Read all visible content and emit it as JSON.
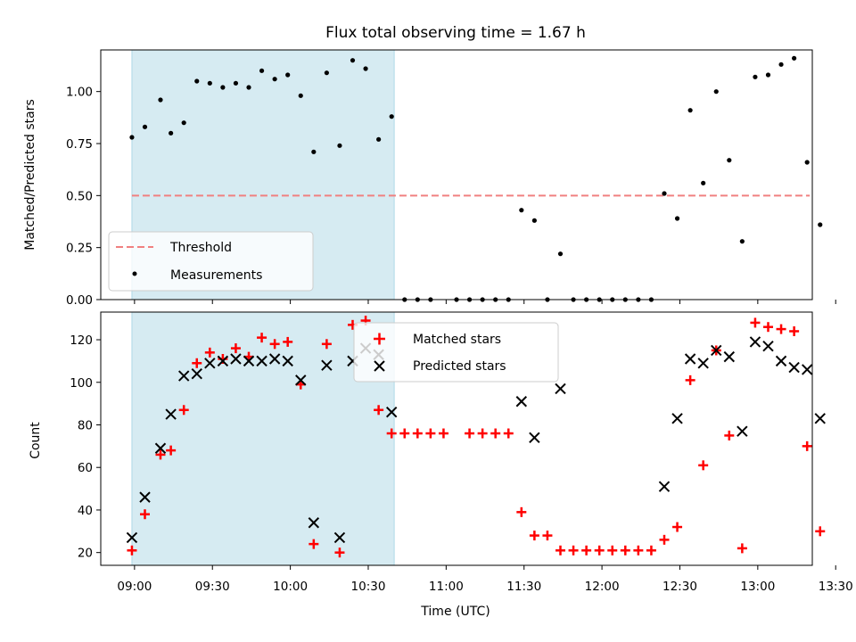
{
  "title": "Flux total observing time = 1.67 h",
  "colors": {
    "shade": "#add8e6",
    "threshold": "#f08080",
    "measurement": "#000000",
    "matched": "#ff0000",
    "predicted": "#000000"
  },
  "chart_data": [
    {
      "type": "scatter",
      "name": "top",
      "ylabel": "Matched/Predicted stars",
      "ylim": [
        0,
        1.2
      ],
      "yticks": [
        0,
        0.25,
        0.5,
        0.75,
        1.0
      ],
      "ytick_labels": [
        "0.00",
        "0.25",
        "0.50",
        "0.75",
        "1.00"
      ],
      "xlim_minutes": [
        -13,
        261
      ],
      "shaded_span_minutes": [
        -1,
        100
      ],
      "legend": {
        "placement": "lower-left",
        "entries": [
          "Threshold",
          "Measurements"
        ]
      },
      "threshold": {
        "name": "Threshold",
        "y": 0.5,
        "x_minutes": [
          -1,
          260
        ]
      },
      "series": [
        {
          "name": "Measurements",
          "points_minutes": [
            [
              -1,
              0.78
            ],
            [
              4,
              0.83
            ],
            [
              10,
              0.96
            ],
            [
              14,
              0.8
            ],
            [
              19,
              0.85
            ],
            [
              24,
              1.05
            ],
            [
              29,
              1.04
            ],
            [
              34,
              1.02
            ],
            [
              39,
              1.04
            ],
            [
              44,
              1.02
            ],
            [
              49,
              1.1
            ],
            [
              54,
              1.06
            ],
            [
              59,
              1.08
            ],
            [
              64,
              0.98
            ],
            [
              69,
              0.71
            ],
            [
              74,
              1.09
            ],
            [
              79,
              0.74
            ],
            [
              84,
              1.15
            ],
            [
              89,
              1.11
            ],
            [
              94,
              0.77
            ],
            [
              99,
              0.88
            ],
            [
              104,
              0
            ],
            [
              109,
              0
            ],
            [
              114,
              0
            ],
            [
              124,
              0
            ],
            [
              129,
              0
            ],
            [
              134,
              0
            ],
            [
              139,
              0
            ],
            [
              144,
              0
            ],
            [
              149,
              0.43
            ],
            [
              154,
              0.38
            ],
            [
              159,
              0
            ],
            [
              164,
              0.22
            ],
            [
              169,
              0
            ],
            [
              174,
              0
            ],
            [
              179,
              0
            ],
            [
              184,
              0
            ],
            [
              189,
              0
            ],
            [
              194,
              0
            ],
            [
              199,
              0
            ],
            [
              204,
              0.51
            ],
            [
              209,
              0.39
            ],
            [
              214,
              0.91
            ],
            [
              219,
              0.56
            ],
            [
              224,
              1.0
            ],
            [
              229,
              0.67
            ],
            [
              234,
              0.28
            ],
            [
              239,
              1.07
            ],
            [
              244,
              1.08
            ],
            [
              249,
              1.13
            ],
            [
              254,
              1.16
            ],
            [
              259,
              0.66
            ],
            [
              264,
              0.36
            ]
          ]
        }
      ]
    },
    {
      "type": "scatter",
      "name": "bottom",
      "ylabel": "Count",
      "xlabel": "Time (UTC)",
      "ylim": [
        14,
        133
      ],
      "yticks": [
        20,
        40,
        60,
        80,
        100,
        120
      ],
      "ytick_labels": [
        "20",
        "40",
        "60",
        "80",
        "100",
        "120"
      ],
      "xlim_minutes": [
        -13,
        261
      ],
      "xticks_minutes": [
        0,
        30,
        60,
        90,
        120,
        150,
        180,
        210,
        240,
        270
      ],
      "xtick_labels": [
        "09:00",
        "09:30",
        "10:00",
        "10:30",
        "11:00",
        "11:30",
        "12:00",
        "12:30",
        "13:00",
        "13:30"
      ],
      "shaded_span_minutes": [
        -1,
        100
      ],
      "legend": {
        "placement": "upper-center",
        "entries": [
          "Matched stars",
          "Predicted stars"
        ]
      },
      "series": [
        {
          "name": "Matched stars",
          "marker": "plus",
          "points_minutes": [
            [
              -1,
              21
            ],
            [
              4,
              38
            ],
            [
              10,
              66
            ],
            [
              14,
              68
            ],
            [
              19,
              87
            ],
            [
              24,
              109
            ],
            [
              29,
              114
            ],
            [
              34,
              111
            ],
            [
              39,
              116
            ],
            [
              44,
              112
            ],
            [
              49,
              121
            ],
            [
              54,
              118
            ],
            [
              59,
              119
            ],
            [
              64,
              99
            ],
            [
              69,
              24
            ],
            [
              74,
              118
            ],
            [
              79,
              20
            ],
            [
              84,
              127
            ],
            [
              89,
              129
            ],
            [
              94,
              87
            ],
            [
              99,
              76
            ],
            [
              104,
              76
            ],
            [
              109,
              76
            ],
            [
              114,
              76
            ],
            [
              119,
              76
            ],
            [
              129,
              76
            ],
            [
              134,
              76
            ],
            [
              139,
              76
            ],
            [
              144,
              76
            ],
            [
              149,
              39
            ],
            [
              154,
              28
            ],
            [
              159,
              28
            ],
            [
              164,
              21
            ],
            [
              169,
              21
            ],
            [
              174,
              21
            ],
            [
              179,
              21
            ],
            [
              184,
              21
            ],
            [
              189,
              21
            ],
            [
              194,
              21
            ],
            [
              199,
              21
            ],
            [
              204,
              26
            ],
            [
              209,
              32
            ],
            [
              214,
              101
            ],
            [
              219,
              61
            ],
            [
              224,
              115
            ],
            [
              229,
              75
            ],
            [
              234,
              22
            ],
            [
              239,
              128
            ],
            [
              244,
              126
            ],
            [
              249,
              125
            ],
            [
              254,
              124
            ],
            [
              259,
              70
            ],
            [
              264,
              30
            ]
          ]
        },
        {
          "name": "Predicted stars",
          "marker": "x",
          "points_minutes": [
            [
              -1,
              27
            ],
            [
              4,
              46
            ],
            [
              10,
              69
            ],
            [
              14,
              85
            ],
            [
              19,
              103
            ],
            [
              24,
              104
            ],
            [
              29,
              109
            ],
            [
              34,
              110
            ],
            [
              39,
              111
            ],
            [
              44,
              110
            ],
            [
              49,
              110
            ],
            [
              54,
              111
            ],
            [
              59,
              110
            ],
            [
              64,
              101
            ],
            [
              69,
              34
            ],
            [
              74,
              108
            ],
            [
              79,
              27
            ],
            [
              84,
              110
            ],
            [
              89,
              116
            ],
            [
              94,
              113
            ],
            [
              99,
              86
            ],
            [
              149,
              91
            ],
            [
              154,
              74
            ],
            [
              164,
              97
            ],
            [
              204,
              51
            ],
            [
              209,
              83
            ],
            [
              214,
              111
            ],
            [
              219,
              109
            ],
            [
              224,
              115
            ],
            [
              229,
              112
            ],
            [
              234,
              77
            ],
            [
              239,
              119
            ],
            [
              244,
              117
            ],
            [
              249,
              110
            ],
            [
              254,
              107
            ],
            [
              259,
              106
            ],
            [
              264,
              83
            ]
          ]
        }
      ]
    }
  ]
}
